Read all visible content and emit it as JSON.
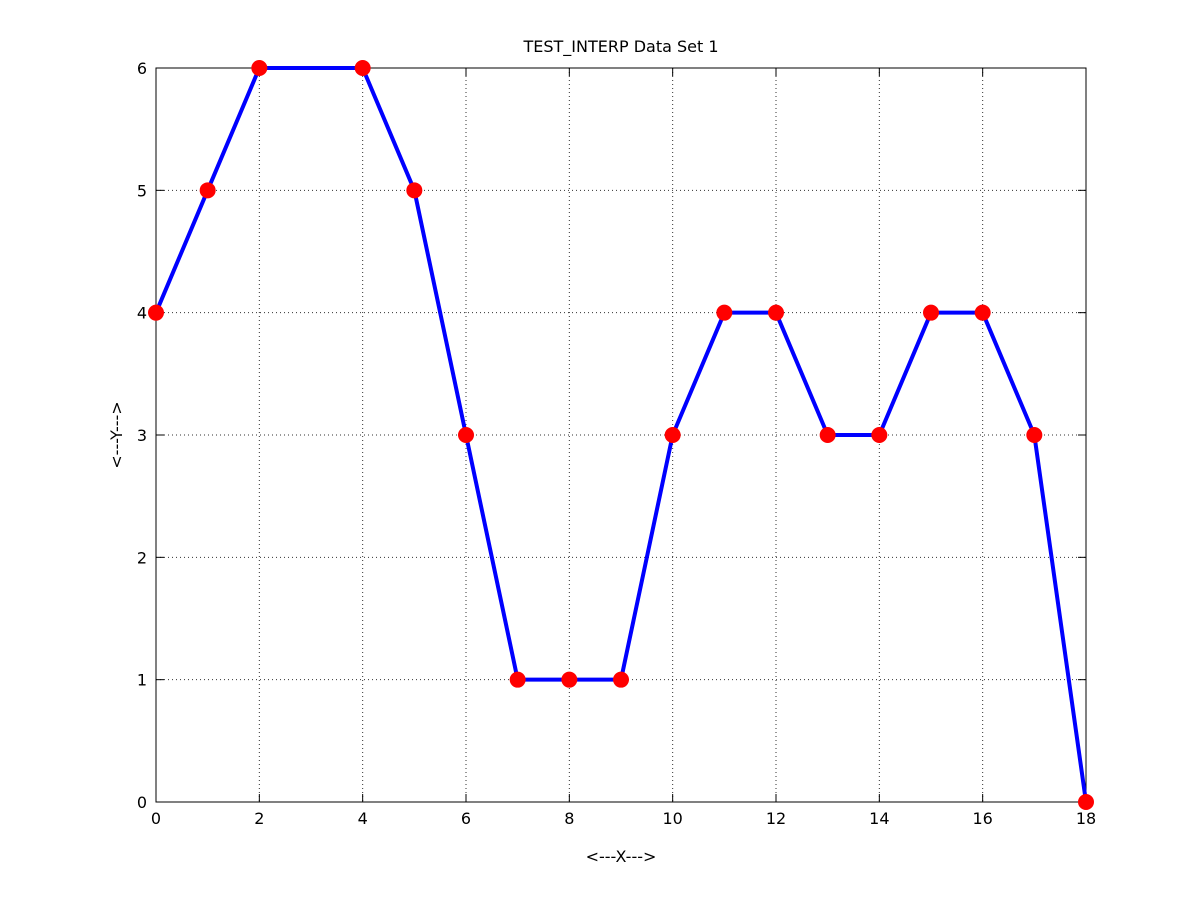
{
  "chart_data": {
    "type": "line",
    "title": "TEST_INTERP Data Set 1",
    "xlabel": "<---X--->",
    "ylabel": "<---Y--->",
    "xlim": [
      0,
      18
    ],
    "ylim": [
      0,
      6
    ],
    "xticks": [
      0,
      2,
      4,
      6,
      8,
      10,
      12,
      14,
      16,
      18
    ],
    "yticks": [
      0,
      1,
      2,
      3,
      4,
      5,
      6
    ],
    "grid": true,
    "series": [
      {
        "line_color": "#0000ff",
        "marker_color": "#ff0000",
        "marker": "circle",
        "x": [
          0,
          1,
          2,
          4,
          5,
          6,
          7,
          8,
          9,
          10,
          11,
          12,
          13,
          14,
          15,
          16,
          17,
          18
        ],
        "y": [
          4,
          5,
          6,
          6,
          5,
          3,
          1,
          1,
          1,
          3,
          4,
          4,
          3,
          3,
          4,
          4,
          3,
          0
        ]
      }
    ]
  }
}
